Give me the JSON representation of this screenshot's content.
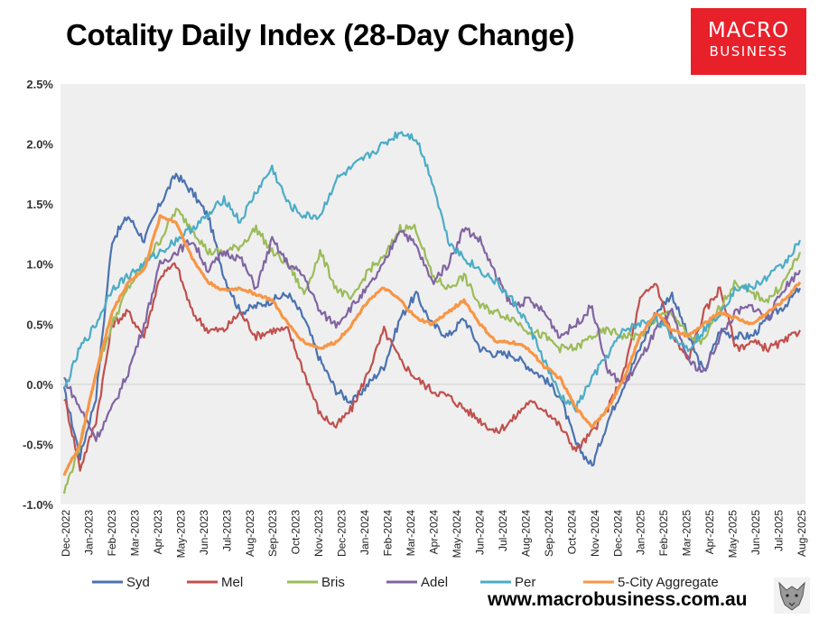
{
  "title": "Cotality Daily Index (28-Day Change)",
  "logo": {
    "line1": "MACRO",
    "line2": "BUSINESS",
    "color": "#e8202a"
  },
  "website": "www.macrobusiness.com.au",
  "chart_data": {
    "type": "line",
    "title": "Cotality Daily Index (28-Day Change)",
    "ylim": [
      -1.0,
      2.5
    ],
    "yticks": [
      "2.5%",
      "2.0%",
      "1.5%",
      "1.0%",
      "0.5%",
      "0.0%",
      "-0.5%",
      "-1.0%"
    ],
    "xticks": [
      "Dec-2022",
      "Jan-2023",
      "Feb-2023",
      "Mar-2023",
      "Apr-2023",
      "May-2023",
      "Jun-2023",
      "Jul-2023",
      "Aug-2023",
      "Sep-2023",
      "Oct-2023",
      "Nov-2023",
      "Dec-2023",
      "Jan-2024",
      "Feb-2024",
      "Mar-2024",
      "Apr-2024",
      "May-2024",
      "Jun-2024",
      "Jul-2024",
      "Aug-2024",
      "Sep-2024",
      "Oct-2024",
      "Nov-2024",
      "Dec-2024",
      "Jan-2025",
      "Feb-2025",
      "Mar-2025",
      "Apr-2025",
      "May-2025",
      "Jun-2025",
      "Jul-2025",
      "Aug-2025"
    ],
    "grid": false,
    "legend_position": "bottom",
    "plot_background": "#efefef",
    "series": [
      {
        "name": "Syd",
        "color": "#4a72b0",
        "values": [
          -0.05,
          -0.6,
          -0.1,
          1.2,
          1.4,
          1.2,
          1.5,
          1.75,
          1.6,
          1.4,
          0.9,
          0.6,
          0.65,
          0.7,
          0.75,
          0.55,
          0.2,
          -0.05,
          -0.15,
          0.0,
          0.15,
          0.55,
          0.75,
          0.5,
          0.4,
          0.55,
          0.3,
          0.25,
          0.25,
          0.15,
          0.05,
          -0.1,
          -0.5,
          -0.68,
          -0.3,
          0.0,
          0.3,
          0.6,
          0.75,
          0.4,
          0.1,
          0.45,
          0.4,
          0.4,
          0.55,
          0.65,
          0.8
        ]
      },
      {
        "name": "Mel",
        "color": "#c0504d",
        "values": [
          -0.1,
          -0.7,
          -0.3,
          0.5,
          0.6,
          0.4,
          0.9,
          1.0,
          0.6,
          0.45,
          0.45,
          0.6,
          0.4,
          0.45,
          0.45,
          0.1,
          -0.25,
          -0.35,
          -0.2,
          0.1,
          0.45,
          0.2,
          0.05,
          -0.05,
          -0.1,
          -0.2,
          -0.3,
          -0.4,
          -0.3,
          -0.15,
          -0.2,
          -0.35,
          -0.55,
          -0.4,
          -0.2,
          0.1,
          0.7,
          0.85,
          0.4,
          0.2,
          0.6,
          0.8,
          0.3,
          0.35,
          0.3,
          0.35,
          0.45
        ]
      },
      {
        "name": "Bris",
        "color": "#9bbb59",
        "values": [
          -0.9,
          -0.5,
          0.1,
          0.5,
          0.8,
          1.0,
          1.2,
          1.45,
          1.3,
          1.1,
          1.1,
          1.15,
          1.3,
          1.1,
          1.0,
          0.75,
          1.1,
          0.8,
          0.7,
          0.95,
          1.05,
          1.3,
          1.3,
          0.9,
          0.8,
          0.9,
          0.65,
          0.6,
          0.55,
          0.45,
          0.4,
          0.3,
          0.3,
          0.4,
          0.45,
          0.4,
          0.4,
          0.55,
          0.6,
          0.4,
          0.35,
          0.65,
          0.85,
          0.75,
          0.7,
          0.85,
          1.1
        ]
      },
      {
        "name": "Adel",
        "color": "#8064a2",
        "values": [
          0.05,
          -0.2,
          -0.45,
          -0.2,
          0.1,
          0.5,
          1.0,
          1.1,
          1.2,
          0.95,
          1.1,
          1.05,
          0.8,
          1.2,
          1.0,
          0.9,
          0.6,
          0.5,
          0.65,
          0.8,
          1.0,
          1.3,
          1.15,
          0.85,
          1.0,
          1.3,
          1.2,
          0.9,
          0.65,
          0.7,
          0.6,
          0.4,
          0.5,
          0.65,
          0.1,
          0.0,
          0.2,
          0.45,
          0.6,
          0.2,
          0.1,
          0.4,
          0.6,
          0.65,
          0.55,
          0.8,
          0.95
        ]
      },
      {
        "name": "Per",
        "color": "#4bacc6",
        "values": [
          -0.05,
          0.3,
          0.5,
          0.8,
          0.9,
          1.0,
          1.1,
          1.2,
          1.3,
          1.4,
          1.55,
          1.35,
          1.6,
          1.8,
          1.5,
          1.4,
          1.4,
          1.7,
          1.8,
          1.9,
          2.0,
          2.1,
          2.05,
          1.7,
          1.2,
          1.05,
          0.95,
          0.85,
          0.7,
          0.5,
          0.2,
          -0.1,
          -0.2,
          0.05,
          0.25,
          0.45,
          0.5,
          0.55,
          0.4,
          0.3,
          0.45,
          0.6,
          0.8,
          0.8,
          0.9,
          1.0,
          1.2
        ]
      },
      {
        "name": "5-City Aggregate",
        "color": "#f79646",
        "values": [
          -0.75,
          -0.5,
          0.1,
          0.6,
          0.85,
          0.95,
          1.4,
          1.35,
          1.05,
          0.85,
          0.78,
          0.8,
          0.75,
          0.7,
          0.5,
          0.35,
          0.3,
          0.35,
          0.5,
          0.7,
          0.8,
          0.7,
          0.55,
          0.5,
          0.6,
          0.7,
          0.5,
          0.35,
          0.35,
          0.3,
          0.15,
          0.05,
          -0.2,
          -0.35,
          -0.2,
          0.05,
          0.4,
          0.6,
          0.45,
          0.4,
          0.5,
          0.6,
          0.55,
          0.5,
          0.6,
          0.7,
          0.85
        ]
      }
    ]
  }
}
